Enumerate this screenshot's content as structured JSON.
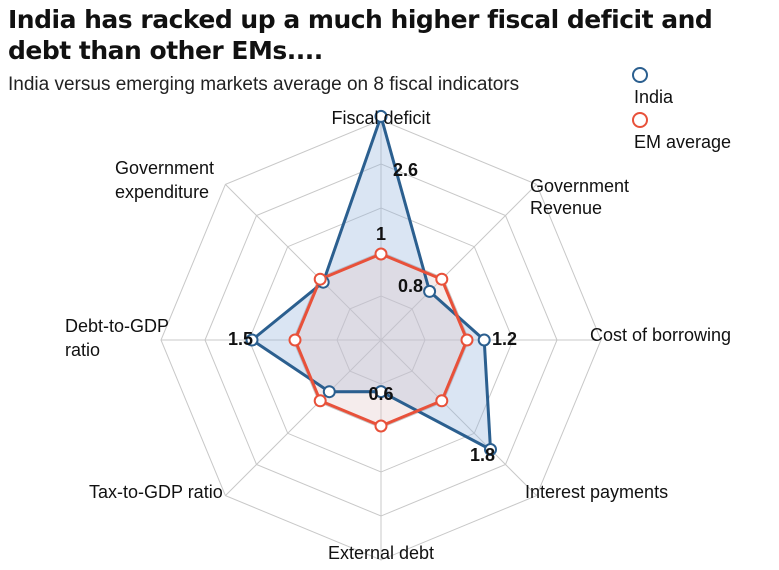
{
  "header": {
    "title": "India has racked up a much higher fiscal deficit and debt than other EMs....",
    "subtitle": "India versus emerging markets average on 8 fiscal indicators"
  },
  "chart_data": {
    "type": "radar",
    "title": "India has racked up a much higher fiscal deficit and debt than other EMs....",
    "subtitle": "India versus emerging markets average on 8 fiscal indicators",
    "axes": [
      "Fiscal deficit",
      "Government Revenue",
      "Cost of borrowing",
      "Interest payments",
      "External debt",
      "Tax-to-GDP ratio",
      "Debt-to-GDP ratio",
      "Government expenditure"
    ],
    "rings": 5,
    "series": [
      {
        "name": "India",
        "color": "#2b5f8f",
        "values": [
          2.6,
          0.8,
          1.2,
          1.8,
          0.6,
          0.85,
          1.5,
          0.95
        ]
      },
      {
        "name": "EM average",
        "color": "#e8513a",
        "values": [
          1,
          1,
          1,
          1,
          1,
          1,
          1,
          1
        ]
      }
    ],
    "value_labels": [
      "2.6",
      "1",
      "0.8",
      "1.2",
      "1.8",
      "0.6",
      "1.5"
    ],
    "legend_position": "top-right",
    "grid": true
  }
}
